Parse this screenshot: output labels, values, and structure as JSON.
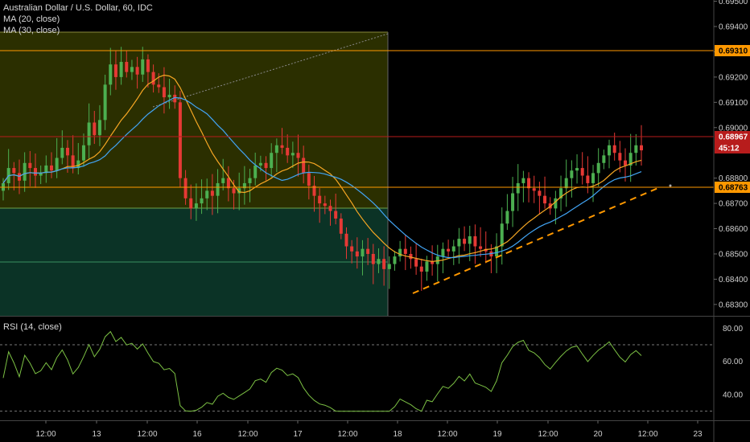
{
  "header": {
    "symbol_title": "Australian Dollar / U.S. Dollar, 60, IDC",
    "indicator_1": "MA (20, close)",
    "indicator_2": "MA (30, close)"
  },
  "rsi_panel": {
    "label": "RSI (14, close)",
    "ticks": [
      "80.00",
      "60.00",
      "40.00"
    ],
    "tick_values": [
      80,
      60,
      40
    ],
    "upper_band": 70,
    "lower_band": 30
  },
  "time_axis": {
    "labels": [
      "12:00",
      "13",
      "12:00",
      "16",
      "12:00",
      "17",
      "12:00",
      "18",
      "12:00",
      "19",
      "12:00",
      "20",
      "12:00",
      "23"
    ]
  },
  "price_axis": {
    "ticks": [
      "0.69500",
      "0.69400",
      "0.69300",
      "0.69200",
      "0.69100",
      "0.69000",
      "0.68800",
      "0.68700",
      "0.68600",
      "0.68500",
      "0.68400",
      "0.68300"
    ],
    "tick_values": [
      0.695,
      0.694,
      0.693,
      0.692,
      0.691,
      0.69,
      0.688,
      0.687,
      0.686,
      0.685,
      0.684,
      0.683
    ],
    "marker_level_orange_top": "0.69310",
    "marker_current_price": "0.68967",
    "marker_countdown": "45:12",
    "marker_level_orange_mid": "0.68763"
  },
  "colors": {
    "background": "#000000",
    "bull_candle": "#4caf50",
    "bear_candle": "#e53935",
    "ma20": "#f5a623",
    "ma30": "#42a5f5",
    "rsi_line": "#7cc144",
    "level_line": "#ff9800",
    "current_price": "#b71c1c",
    "trendline": "#ff9800",
    "fib_zone_top": "#2b2f00",
    "fib_zone_bottom": "#0b3326"
  },
  "chart_data": {
    "type": "candlestick",
    "title": "Australian Dollar / U.S. Dollar, 60, IDC",
    "ylim": [
      0.6825,
      0.6951
    ],
    "levels": [
      0.6931,
      0.68967,
      0.68763
    ],
    "close_series": [
      0.6878,
      0.6884,
      0.6882,
      0.6879,
      0.6886,
      0.6884,
      0.6881,
      0.6882,
      0.6885,
      0.6883,
      0.6888,
      0.6892,
      0.6889,
      0.6884,
      0.6887,
      0.6893,
      0.6902,
      0.6897,
      0.6903,
      0.6917,
      0.6925,
      0.692,
      0.6926,
      0.6922,
      0.6924,
      0.6921,
      0.6927,
      0.6922,
      0.6917,
      0.6916,
      0.6912,
      0.6913,
      0.691,
      0.688,
      0.6872,
      0.6868,
      0.687,
      0.6872,
      0.6875,
      0.6873,
      0.6878,
      0.688,
      0.6876,
      0.6874,
      0.6876,
      0.6878,
      0.688,
      0.6885,
      0.6886,
      0.6884,
      0.689,
      0.6893,
      0.6892,
      0.6889,
      0.689,
      0.6888,
      0.6882,
      0.6877,
      0.6873,
      0.687,
      0.6869,
      0.6867,
      0.6864,
      0.6858,
      0.6853,
      0.6851,
      0.6849,
      0.6852,
      0.685,
      0.6846,
      0.6848,
      0.6844,
      0.6846,
      0.6849,
      0.6852,
      0.685,
      0.6848,
      0.6845,
      0.6843,
      0.6847,
      0.6846,
      0.6849,
      0.6852,
      0.6851,
      0.6853,
      0.6856,
      0.6854,
      0.6857,
      0.6853,
      0.6852,
      0.6851,
      0.6849,
      0.6853,
      0.6862,
      0.6867,
      0.6874,
      0.6878,
      0.688,
      0.6876,
      0.6875,
      0.6873,
      0.687,
      0.6868,
      0.6872,
      0.6876,
      0.688,
      0.6883,
      0.6884,
      0.6881,
      0.6878,
      0.6882,
      0.6886,
      0.6889,
      0.6893,
      0.689,
      0.6887,
      0.6885,
      0.689,
      0.6893,
      0.6891
    ]
  }
}
